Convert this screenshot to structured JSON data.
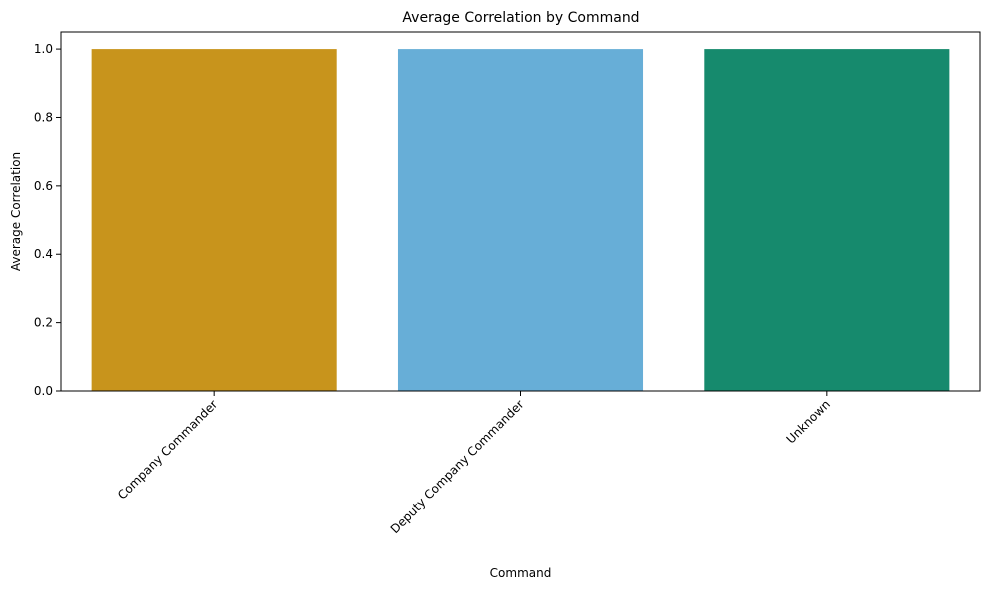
{
  "chart_data": {
    "type": "bar",
    "title": "Average Correlation by Command",
    "xlabel": "Command",
    "ylabel": "Average Correlation",
    "categories": [
      "Company Commander",
      "Deputy Company Commander",
      "Unknown"
    ],
    "values": [
      1.0,
      1.0,
      1.0
    ],
    "colors": [
      "#c8941c",
      "#67aed7",
      "#168a6d"
    ],
    "ylim": [
      0,
      1.05
    ],
    "yticks": [
      0.0,
      0.2,
      0.4,
      0.6,
      0.8,
      1.0
    ],
    "ytick_labels": [
      "0.0",
      "0.2",
      "0.4",
      "0.6",
      "0.8",
      "1.0"
    ],
    "grid": false,
    "legend": "none"
  }
}
